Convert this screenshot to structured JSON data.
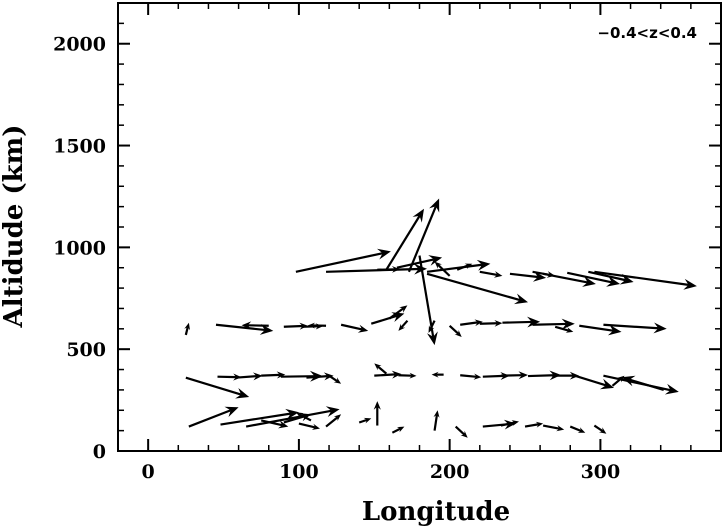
{
  "chart_data": {
    "type": "vector_field",
    "title": "",
    "annotation": "−0.4<z<0.4",
    "xlabel": "Longitude",
    "ylabel": "Altidude (km)",
    "xlim": [
      -20,
      380
    ],
    "ylim": [
      0,
      2200
    ],
    "xticks": [
      0,
      100,
      200,
      300
    ],
    "yticks": [
      0,
      500,
      1000,
      1500,
      2000
    ],
    "grid": false,
    "vectors": [
      {
        "x": 27,
        "y": 120,
        "u": 33,
        "v": 95
      },
      {
        "x": 48,
        "y": 130,
        "u": 52,
        "v": 60
      },
      {
        "x": 65,
        "y": 120,
        "u": 62,
        "v": 85
      },
      {
        "x": 75,
        "y": 150,
        "u": 18,
        "v": -30
      },
      {
        "x": 90,
        "y": 140,
        "u": 18,
        "v": 40
      },
      {
        "x": 100,
        "y": 135,
        "u": 14,
        "v": -25
      },
      {
        "x": 108,
        "y": 150,
        "u": -10,
        "v": 40
      },
      {
        "x": 118,
        "y": 120,
        "u": 10,
        "v": 60
      },
      {
        "x": 140,
        "y": 140,
        "u": 8,
        "v": 20
      },
      {
        "x": 152,
        "y": 125,
        "u": 0,
        "v": 120
      },
      {
        "x": 162,
        "y": 90,
        "u": 8,
        "v": 30
      },
      {
        "x": 190,
        "y": 100,
        "u": 2,
        "v": 100
      },
      {
        "x": 204,
        "y": 120,
        "u": 8,
        "v": -55
      },
      {
        "x": 222,
        "y": 120,
        "u": 22,
        "v": 15
      },
      {
        "x": 234,
        "y": 125,
        "u": 12,
        "v": 20
      },
      {
        "x": 250,
        "y": 120,
        "u": 12,
        "v": 15
      },
      {
        "x": 262,
        "y": 125,
        "u": 14,
        "v": -20
      },
      {
        "x": 280,
        "y": 120,
        "u": 10,
        "v": -30
      },
      {
        "x": 296,
        "y": 125,
        "u": 8,
        "v": -40
      },
      {
        "x": 25,
        "y": 360,
        "u": 42,
        "v": -95
      },
      {
        "x": 46,
        "y": 365,
        "u": 16,
        "v": -3
      },
      {
        "x": 58,
        "y": 360,
        "u": 18,
        "v": 10
      },
      {
        "x": 75,
        "y": 370,
        "u": 16,
        "v": 5
      },
      {
        "x": 88,
        "y": 365,
        "u": 28,
        "v": 3
      },
      {
        "x": 105,
        "y": 360,
        "u": 18,
        "v": 10
      },
      {
        "x": 120,
        "y": 370,
        "u": 8,
        "v": -40
      },
      {
        "x": 150,
        "y": 370,
        "u": 18,
        "v": 8
      },
      {
        "x": 158,
        "y": 380,
        "u": -8,
        "v": 50
      },
      {
        "x": 166,
        "y": 372,
        "u": 12,
        "v": -3
      },
      {
        "x": 196,
        "y": 375,
        "u": -8,
        "v": 0
      },
      {
        "x": 207,
        "y": 372,
        "u": 14,
        "v": -10
      },
      {
        "x": 222,
        "y": 365,
        "u": 18,
        "v": 5
      },
      {
        "x": 234,
        "y": 370,
        "u": 18,
        "v": 3
      },
      {
        "x": 252,
        "y": 368,
        "u": 22,
        "v": 5
      },
      {
        "x": 268,
        "y": 370,
        "u": 18,
        "v": 0
      },
      {
        "x": 283,
        "y": 370,
        "u": 26,
        "v": -60
      },
      {
        "x": 308,
        "y": 320,
        "u": 8,
        "v": 50
      },
      {
        "x": 302,
        "y": 370,
        "u": 50,
        "v": -80
      },
      {
        "x": 342,
        "y": 300,
        "u": -28,
        "v": 62
      },
      {
        "x": 25,
        "y": 570,
        "u": 2,
        "v": 60
      },
      {
        "x": 45,
        "y": 620,
        "u": 38,
        "v": -30
      },
      {
        "x": 80,
        "y": 615,
        "u": -18,
        "v": 3
      },
      {
        "x": 90,
        "y": 610,
        "u": 16,
        "v": 5
      },
      {
        "x": 102,
        "y": 610,
        "u": 14,
        "v": 3
      },
      {
        "x": 118,
        "y": 615,
        "u": -12,
        "v": 2
      },
      {
        "x": 128,
        "y": 620,
        "u": 18,
        "v": -30
      },
      {
        "x": 148,
        "y": 625,
        "u": 22,
        "v": 50
      },
      {
        "x": 160,
        "y": 650,
        "u": 12,
        "v": 65
      },
      {
        "x": 172,
        "y": 640,
        "u": -6,
        "v": -50
      },
      {
        "x": 190,
        "y": 640,
        "u": -4,
        "v": -60
      },
      {
        "x": 200,
        "y": 615,
        "u": 8,
        "v": -55
      },
      {
        "x": 207,
        "y": 620,
        "u": 15,
        "v": 15
      },
      {
        "x": 220,
        "y": 625,
        "u": 15,
        "v": 3
      },
      {
        "x": 235,
        "y": 630,
        "u": 25,
        "v": 5
      },
      {
        "x": 255,
        "y": 620,
        "u": 28,
        "v": 5
      },
      {
        "x": 270,
        "y": 610,
        "u": 12,
        "v": -25
      },
      {
        "x": 286,
        "y": 615,
        "u": 28,
        "v": -30
      },
      {
        "x": 302,
        "y": 620,
        "u": 42,
        "v": -20
      },
      {
        "x": 98,
        "y": 880,
        "u": 63,
        "v": 100
      },
      {
        "x": 118,
        "y": 880,
        "u": 67,
        "v": 15
      },
      {
        "x": 152,
        "y": 890,
        "u": 15,
        "v": 3
      },
      {
        "x": 158,
        "y": 890,
        "u": 25,
        "v": 300
      },
      {
        "x": 165,
        "y": 900,
        "u": 30,
        "v": 50
      },
      {
        "x": 173,
        "y": 880,
        "u": 20,
        "v": 360
      },
      {
        "x": 180,
        "y": 960,
        "u": 10,
        "v": -440
      },
      {
        "x": 200,
        "y": 860,
        "u": -10,
        "v": 70
      },
      {
        "x": 185,
        "y": 880,
        "u": 42,
        "v": 40
      },
      {
        "x": 205,
        "y": 890,
        "u": 10,
        "v": 30
      },
      {
        "x": 185,
        "y": 870,
        "u": 67,
        "v": -140
      },
      {
        "x": 220,
        "y": 880,
        "u": 15,
        "v": -20
      },
      {
        "x": 240,
        "y": 870,
        "u": 24,
        "v": -20
      },
      {
        "x": 255,
        "y": 880,
        "u": 15,
        "v": -20
      },
      {
        "x": 262,
        "y": 870,
        "u": 35,
        "v": -50
      },
      {
        "x": 278,
        "y": 875,
        "u": 35,
        "v": -55
      },
      {
        "x": 292,
        "y": 880,
        "u": 30,
        "v": -50
      },
      {
        "x": 296,
        "y": 880,
        "u": 68,
        "v": -70
      }
    ]
  }
}
